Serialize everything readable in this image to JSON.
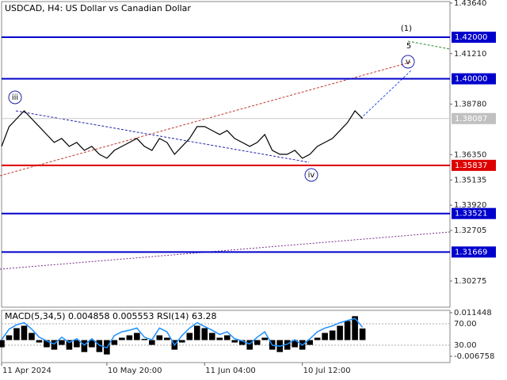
{
  "chart_data": [
    {
      "type": "line",
      "title": "USDCAD, H4:  US Dollar vs Canadian Dollar",
      "categories": [
        "11 Apr 2024",
        null,
        null,
        null,
        null,
        null,
        null,
        null,
        null,
        null,
        null,
        null,
        null,
        null,
        "10 May 20:00",
        null,
        null,
        null,
        null,
        null,
        null,
        null,
        null,
        null,
        null,
        null,
        null,
        "11 Jun 04:00",
        null,
        null,
        null,
        null,
        null,
        null,
        null,
        null,
        null,
        null,
        null,
        null,
        "10 Jul 12:00",
        null,
        null,
        null,
        null,
        null,
        null,
        null,
        null,
        null,
        null,
        null,
        null,
        null,
        null,
        null,
        null,
        null,
        null,
        null
      ],
      "series": [
        {
          "name": "USDCAD",
          "color": "#000000",
          "values": [
            1.3675,
            1.377,
            1.3808,
            1.3846,
            1.3808,
            1.377,
            1.3732,
            1.3694,
            1.3713,
            1.3675,
            1.3694,
            1.3656,
            1.3675,
            1.3637,
            1.3618,
            1.3656,
            1.3675,
            1.3694,
            1.3713,
            1.3675,
            1.3656,
            1.3713,
            1.3694,
            1.3637,
            1.3675,
            1.3713,
            1.377,
            1.377,
            1.3751,
            1.3732,
            1.3751,
            1.3713,
            1.3694,
            1.3675,
            1.3694,
            1.3732,
            1.3656,
            1.3637,
            1.3637,
            1.3656,
            1.3618,
            1.3637,
            1.3675,
            1.3694,
            1.3713,
            1.3751,
            1.3789,
            1.3846,
            1.3809,
            null,
            null,
            null,
            null,
            null,
            null,
            null,
            null,
            null,
            null,
            null
          ]
        }
      ],
      "ylim": [
        1.2894,
        1.4379
      ],
      "yticks": [
        {
          "value": 1.4364,
          "label": "1.43640"
        },
        {
          "value": 1.4121,
          "label": "1.41210"
        },
        {
          "value": 1.3878,
          "label": "1.38780"
        },
        {
          "value": 1.3635,
          "label": "1.36350"
        },
        {
          "value": 1.35135,
          "label": "1.35135"
        },
        {
          "value": 1.3392,
          "label": "1.33920"
        },
        {
          "value": 1.32705,
          "label": "1.32705"
        },
        {
          "value": 1.30275,
          "label": "1.30275"
        }
      ],
      "levels": [
        {
          "value": 1.42,
          "label": "1.42000",
          "color": "#0000cc"
        },
        {
          "value": 1.4,
          "label": "1.40000",
          "color": "#0000cc"
        },
        {
          "value": 1.35837,
          "label": "1.35837",
          "color": "#dd0000"
        },
        {
          "value": 1.33521,
          "label": "1.33521",
          "color": "#0000cc"
        },
        {
          "value": 1.31669,
          "label": "1.31669",
          "color": "#0000cc"
        }
      ],
      "last_price": {
        "value": 1.38087,
        "label": "1.38087"
      },
      "annotations": [
        {
          "text": "(1)",
          "color": "#2e8b2e"
        },
        {
          "text": "5",
          "color": "#b22222"
        },
        {
          "text": "v",
          "color": "#2222aa"
        },
        {
          "text": "iii",
          "color": "#2222aa"
        },
        {
          "text": "iv",
          "color": "#2222aa"
        }
      ]
    },
    {
      "type": "bar",
      "title": "MACD(5,34,5) 0.004858 0.005553 RSI(14) 63.28",
      "series": [
        {
          "name": "MACD",
          "color": "#000000",
          "values": [
            -0.003,
            0.002,
            0.005,
            0.006,
            0.003,
            -0.001,
            -0.003,
            -0.004,
            -0.002,
            -0.004,
            -0.003,
            -0.005,
            -0.003,
            -0.005,
            -0.006,
            -0.002,
            0.001,
            0.002,
            0.003,
            0.0005,
            -0.002,
            0.002,
            0.001,
            -0.004,
            -0.001,
            0.003,
            0.006,
            0.005,
            0.003,
            0.001,
            0.002,
            -0.001,
            -0.002,
            -0.004,
            -0.002,
            0.001,
            -0.004,
            -0.005,
            -0.004,
            -0.003,
            -0.004,
            -0.002,
            0.001,
            0.003,
            0.004,
            0.006,
            0.008,
            0.01,
            0.004858,
            null,
            null,
            null,
            null,
            null,
            null,
            null,
            null,
            null,
            null,
            null
          ]
        },
        {
          "name": "RSI",
          "color": "#1e90ff",
          "axis": "y2",
          "values": [
            40,
            60,
            68,
            72,
            60,
            45,
            38,
            32,
            45,
            35,
            42,
            30,
            42,
            30,
            25,
            48,
            55,
            58,
            62,
            45,
            40,
            62,
            55,
            30,
            48,
            62,
            72,
            65,
            58,
            50,
            55,
            42,
            38,
            32,
            45,
            55,
            30,
            28,
            32,
            40,
            30,
            42,
            55,
            62,
            66,
            72,
            76,
            80,
            63.28,
            null,
            null,
            null,
            null,
            null,
            null,
            null,
            null,
            null,
            null,
            null
          ]
        }
      ],
      "ylim": [
        -0.009406,
        0.013103
      ],
      "yticks": [
        {
          "value": 0.011448,
          "label": "0.011448"
        },
        {
          "value": -0.006758,
          "label": "-0.006758"
        }
      ],
      "y2lim": [
        -2.6,
        98.1
      ],
      "y2ticks": [
        {
          "value": 70,
          "label": "70.00"
        },
        {
          "value": 30,
          "label": "30.00"
        }
      ]
    }
  ]
}
